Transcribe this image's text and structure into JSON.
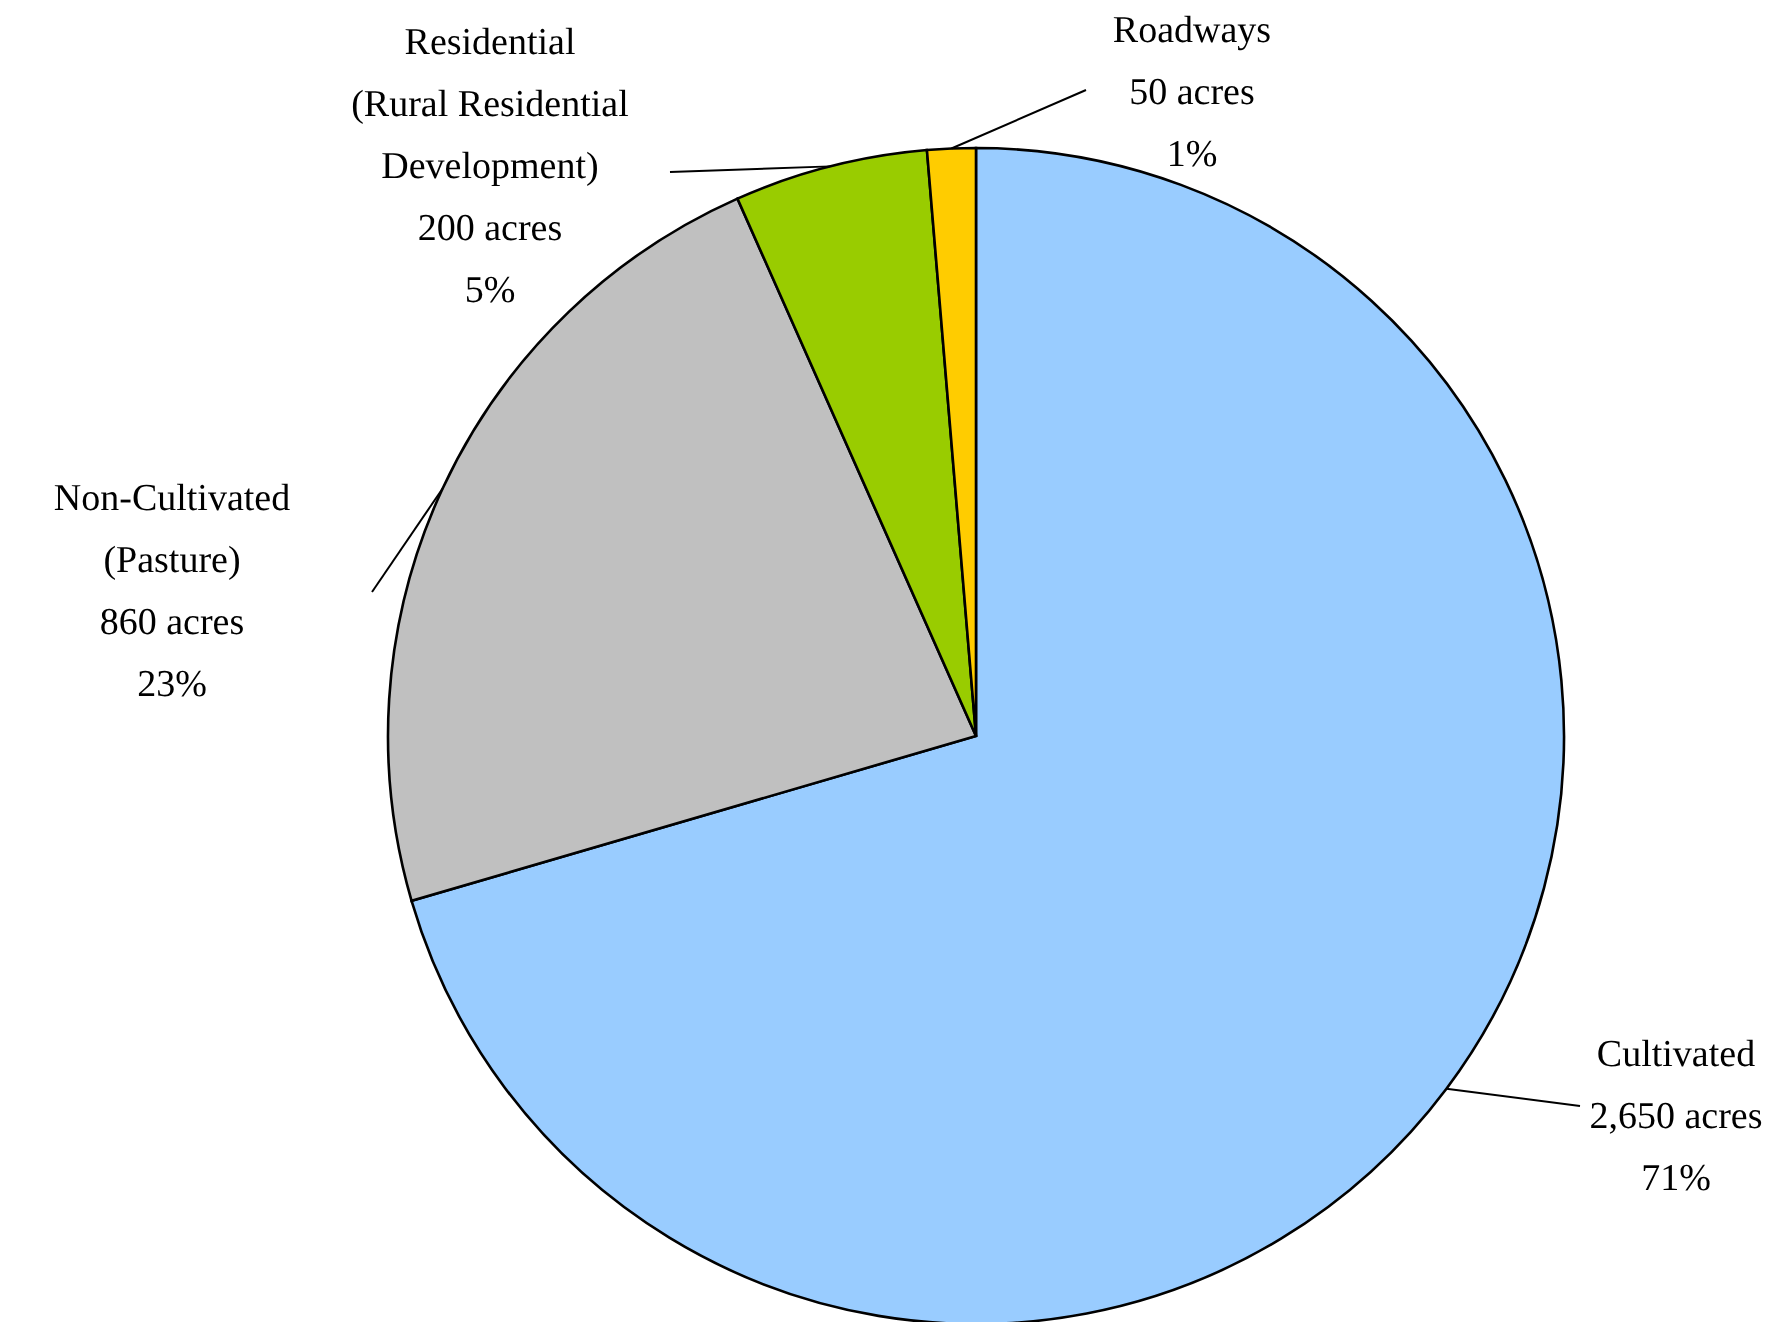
{
  "chart_data": {
    "type": "pie",
    "categories": [
      "Cultivated",
      "Non-Cultivated\n(Pasture)",
      "Residential\n(Rural Residential\nDevelopment)",
      "Roadways"
    ],
    "values": [
      2650,
      860,
      200,
      50
    ],
    "colors": [
      "#99ccff",
      "#c0c0c0",
      "#99cc00",
      "#ffcc00"
    ],
    "value_labels": [
      "2,650 acres\n71%",
      "860 acres\n23%",
      "200 acres\n5%",
      "50 acres\n1%"
    ]
  }
}
